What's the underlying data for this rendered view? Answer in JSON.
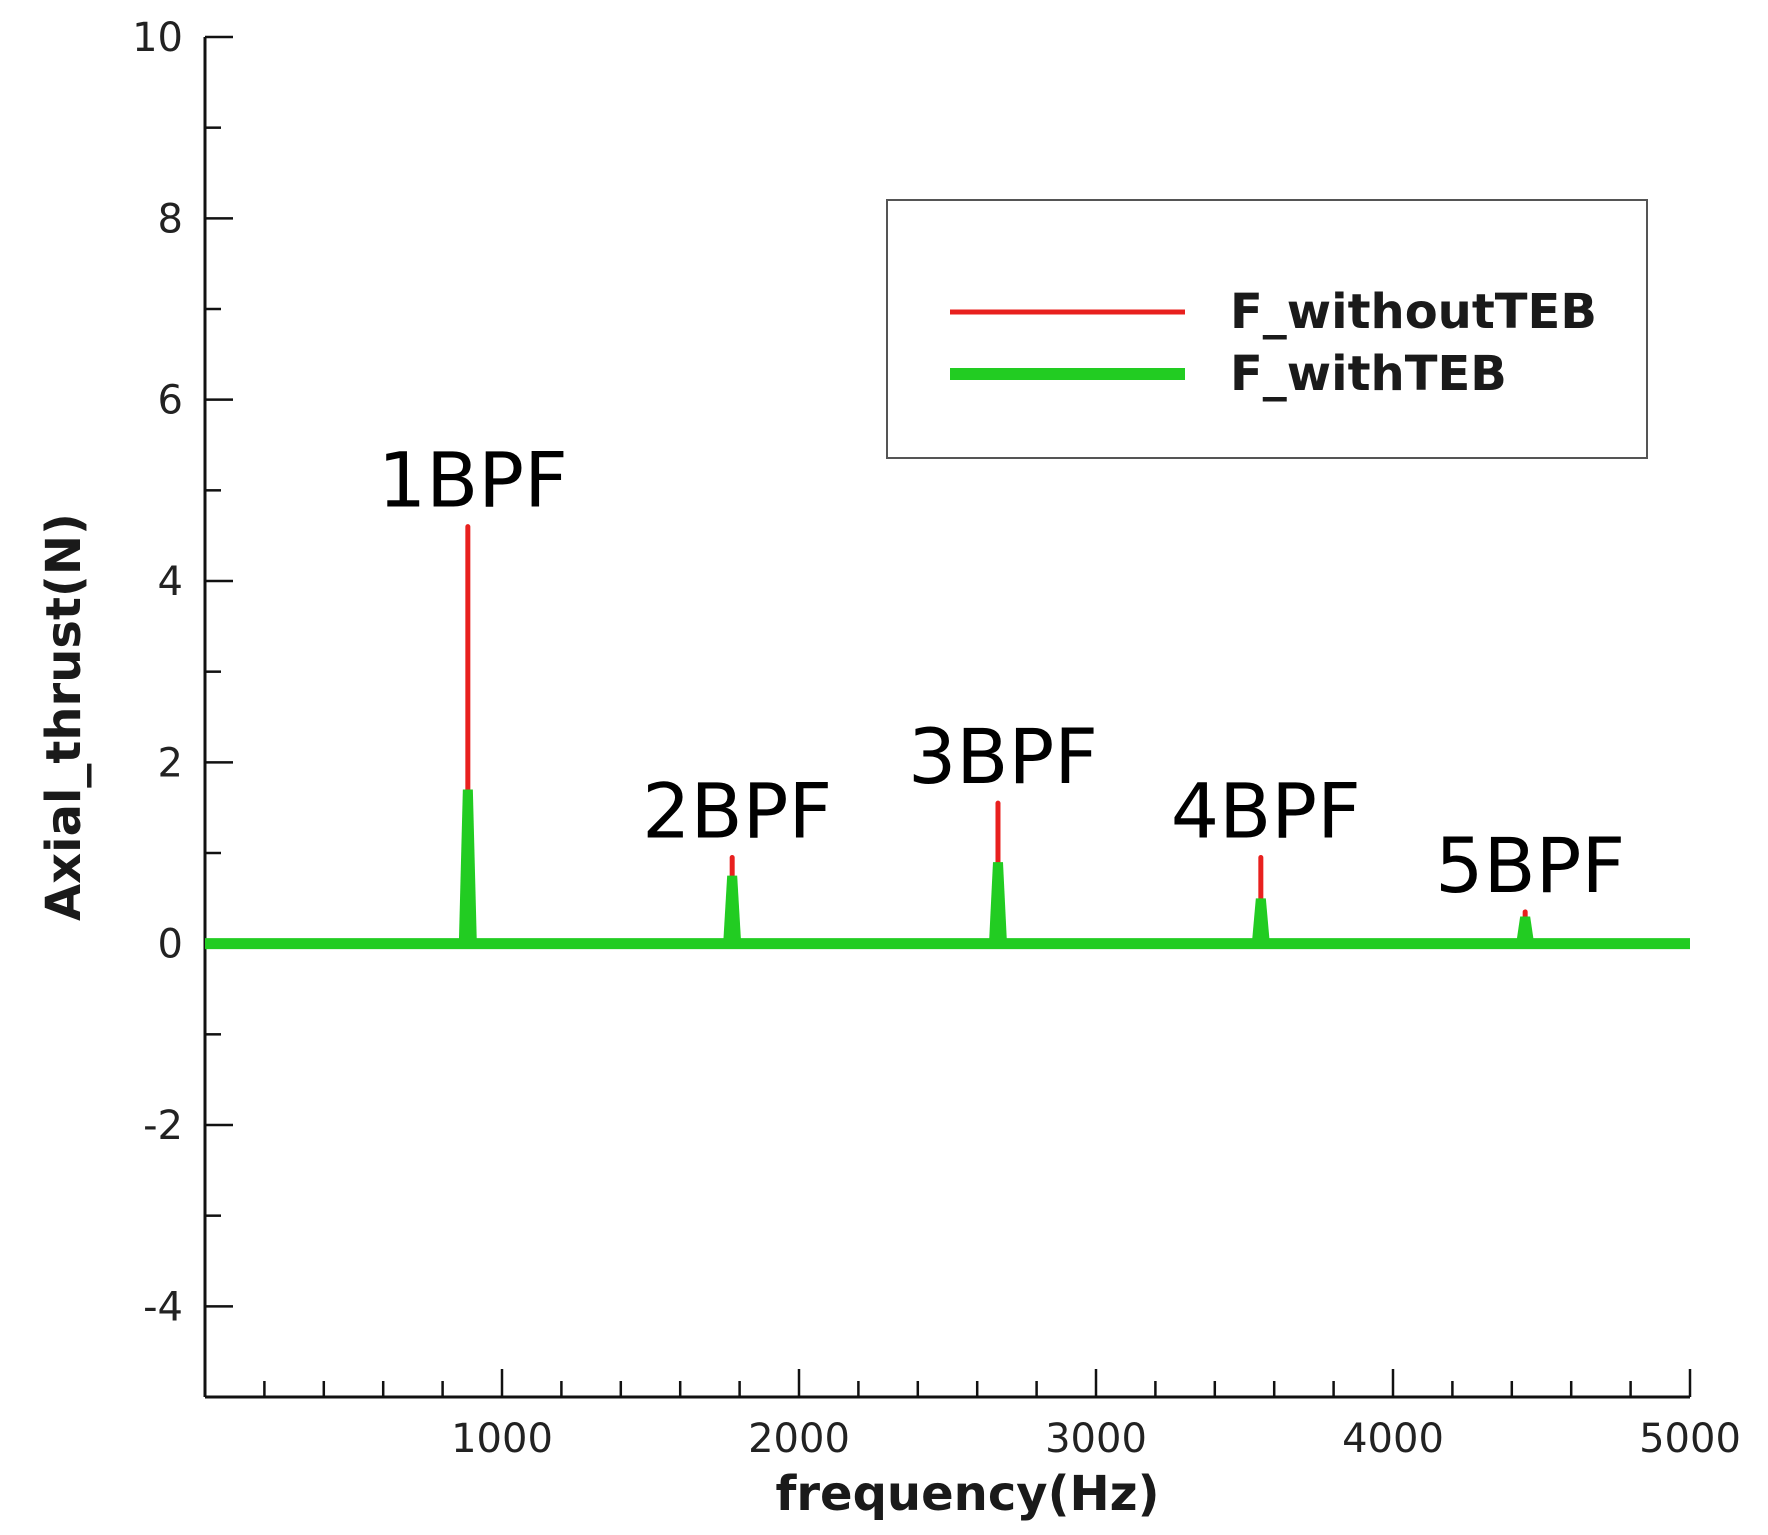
{
  "chart_data": {
    "type": "line",
    "xlabel": "frequency(Hz)",
    "ylabel": "Axial_thrust(N)",
    "xlim": [
      0,
      5000
    ],
    "ylim": [
      -5,
      10
    ],
    "x_ticks": [
      1000,
      2000,
      3000,
      4000,
      5000
    ],
    "x_tick_labels": [
      "1000",
      "2000",
      "3000",
      "4000",
      "5000"
    ],
    "y_ticks": [
      -4,
      -2,
      0,
      2,
      4,
      6,
      8,
      10
    ],
    "y_tick_labels": [
      "-4",
      "-2",
      "0",
      "2",
      "4",
      "6",
      "8",
      "10"
    ],
    "grid": false,
    "legend_position": "top-right",
    "series": [
      {
        "name": "F_withoutTEB",
        "color": "#e8201e",
        "x": [
          0,
          880,
          882,
          884,
          886,
          5000
        ],
        "y": [
          0,
          0,
          4.6,
          0,
          0,
          0
        ],
        "peaks": [
          {
            "x": 885,
            "y": 4.6
          },
          {
            "x": 1775,
            "y": 0.95
          },
          {
            "x": 2670,
            "y": 1.55
          },
          {
            "x": 3555,
            "y": 0.95
          },
          {
            "x": 4445,
            "y": 0.35
          }
        ]
      },
      {
        "name": "F_withTEB",
        "color": "#22cc22",
        "peaks": [
          {
            "x": 885,
            "y": 1.7
          },
          {
            "x": 1775,
            "y": 0.75
          },
          {
            "x": 2670,
            "y": 0.9
          },
          {
            "x": 3555,
            "y": 0.5
          },
          {
            "x": 4445,
            "y": 0.3
          }
        ]
      }
    ],
    "annotations": [
      {
        "text": "1BPF",
        "x": 885,
        "y": 4.6
      },
      {
        "text": "2BPF",
        "x": 1775,
        "y": 0.95
      },
      {
        "text": "3BPF",
        "x": 2670,
        "y": 1.55
      },
      {
        "text": "4BPF",
        "x": 3555,
        "y": 0.95
      },
      {
        "text": "5BPF",
        "x": 4445,
        "y": 0.35
      }
    ]
  }
}
